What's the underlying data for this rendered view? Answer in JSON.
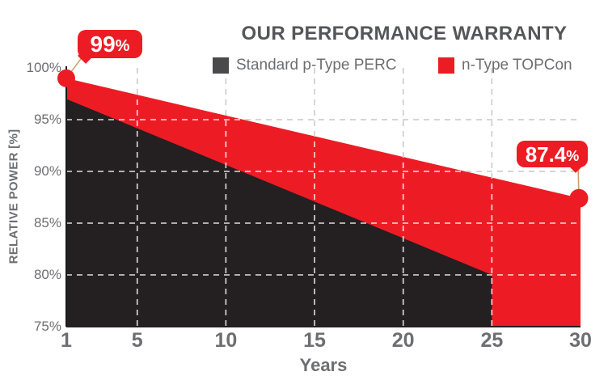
{
  "title": "OUR PERFORMANCE WARRANTY",
  "legend": [
    {
      "label": "Standard p-Type PERC",
      "color": "#4a4a4c"
    },
    {
      "label": "n-Type TOPCon",
      "color": "#ed1c24"
    }
  ],
  "annotations": {
    "start_value": "99",
    "end_value": "87.4",
    "percent_sign": "%"
  },
  "y_axis": {
    "title": "RELATIVE POWER [%]",
    "ticks": [
      "100%",
      "95%",
      "90%",
      "85%",
      "80%",
      "75%"
    ]
  },
  "x_axis": {
    "title": "Years",
    "ticks": [
      "1",
      "5",
      "10",
      "15",
      "20",
      "25",
      "30"
    ]
  },
  "colors": {
    "red": "#ed1c24",
    "dark": "#241f21",
    "grid_light": "#c7c7c7",
    "grid_on_fill": "rgba(255,255,255,0.85)",
    "axis_text": "#6d6e71",
    "title_text": "#55565a",
    "connector": "#c9a06a",
    "axis_line": "#1a1a1a"
  },
  "chart_data": {
    "type": "area",
    "title": "OUR PERFORMANCE WARRANTY",
    "xlabel": "Years",
    "ylabel": "RELATIVE POWER [%]",
    "xlim": [
      1,
      30
    ],
    "ylim": [
      75,
      100
    ],
    "x_ticks": [
      1,
      5,
      10,
      15,
      20,
      25,
      30
    ],
    "y_ticks": [
      100,
      95,
      90,
      85,
      80,
      75
    ],
    "grid": "dashed",
    "legend_position": "top",
    "series": [
      {
        "name": "n-Type TOPCon",
        "color": "#ed1c24",
        "x": [
          1,
          30
        ],
        "values": [
          99,
          87.4
        ],
        "baseline": 75
      },
      {
        "name": "Standard p-Type PERC",
        "color": "#241f21",
        "x": [
          1,
          25
        ],
        "values": [
          97,
          80
        ],
        "baseline": 75
      }
    ],
    "annotations": [
      {
        "x": 1,
        "y": 99,
        "label": "99%"
      },
      {
        "x": 30,
        "y": 87.4,
        "label": "87.4%"
      }
    ]
  }
}
